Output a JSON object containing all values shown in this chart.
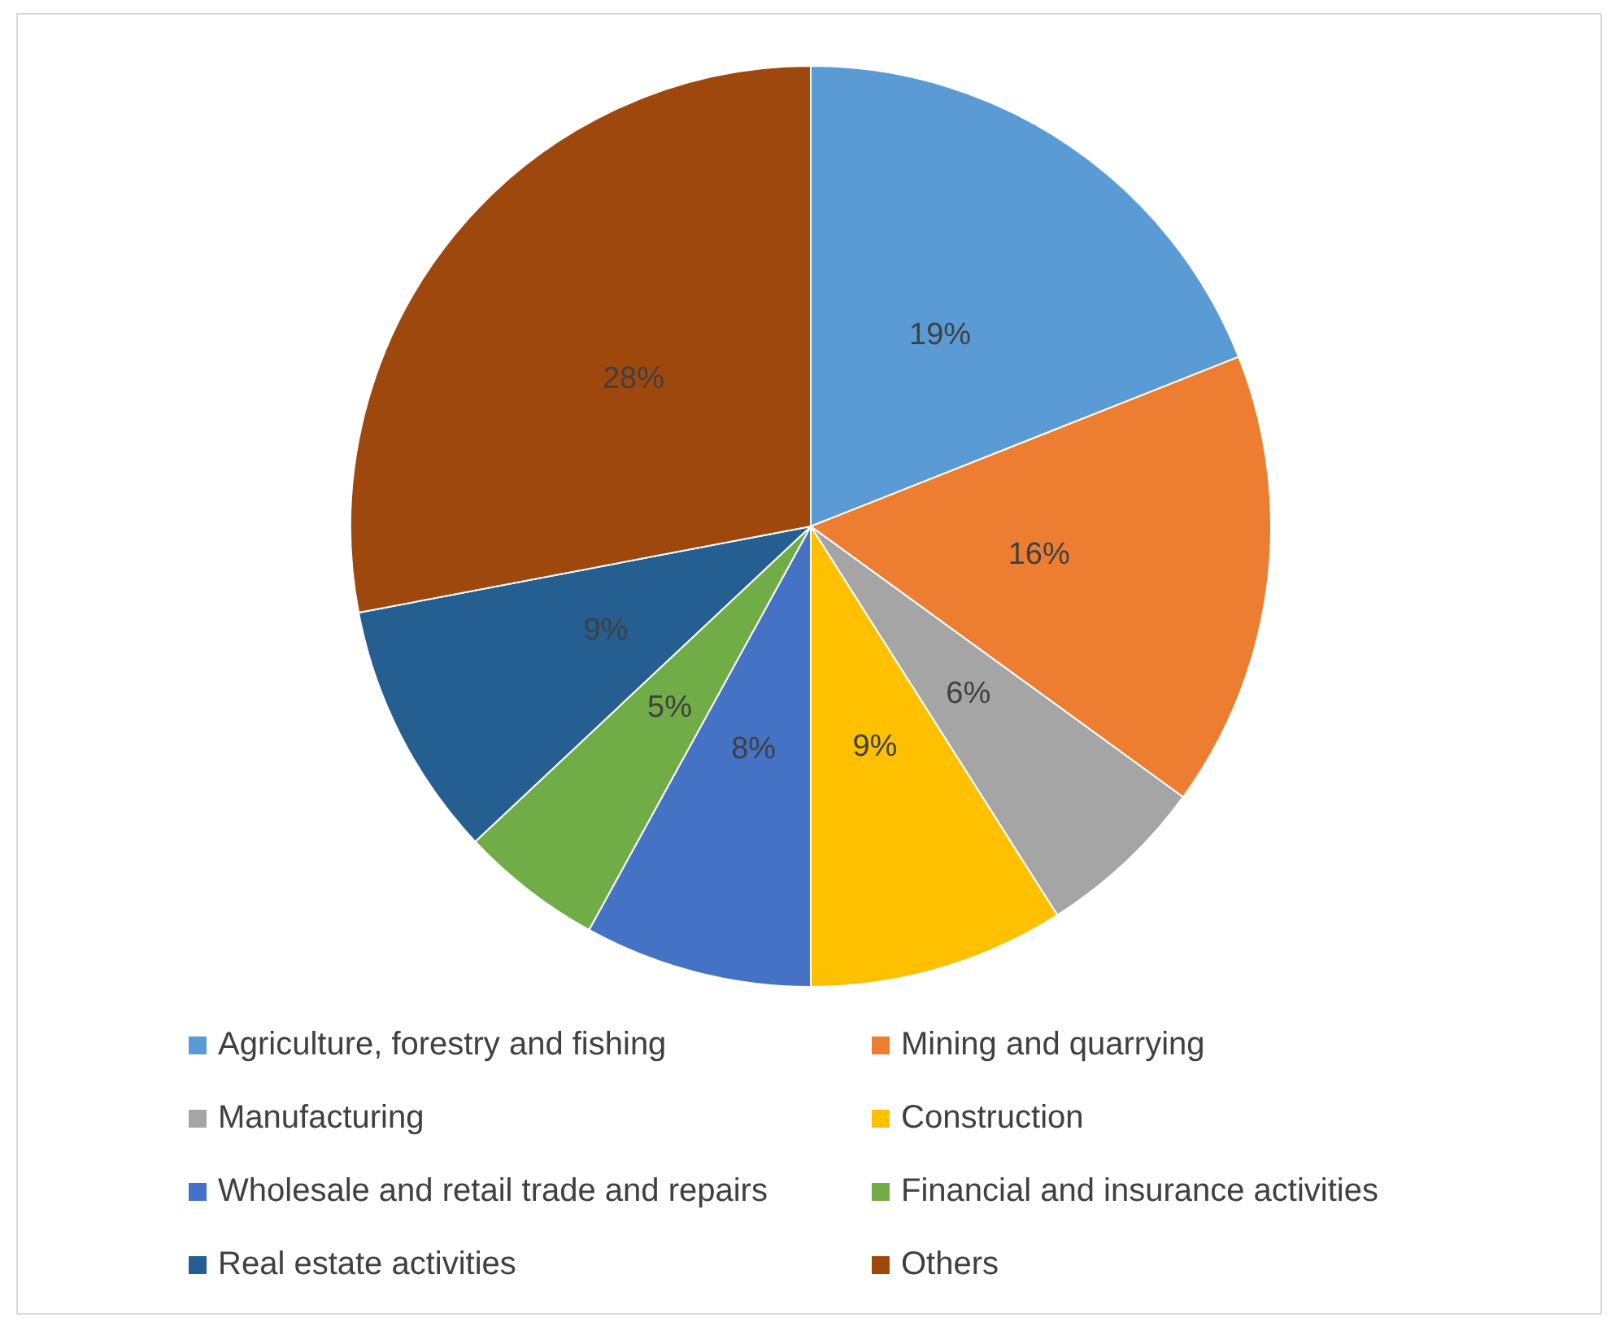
{
  "chart_data": {
    "type": "pie",
    "categories": [
      "Agriculture, forestry and fishing",
      "Mining and quarrying",
      "Manufacturing",
      "Construction",
      "Wholesale and retail trade and repairs",
      "Financial and insurance activities",
      "Real estate activities",
      "Others"
    ],
    "values": [
      19,
      16,
      6,
      9,
      8,
      5,
      9,
      28
    ],
    "colors": [
      "#5b9bd5",
      "#ed7d31",
      "#a5a5a5",
      "#ffc000",
      "#4472c4",
      "#70ad47",
      "#255e91",
      "#9e480e"
    ],
    "value_labels": [
      "19%",
      "16%",
      "6%",
      "9%",
      "8%",
      "5%",
      "9%",
      "28%"
    ],
    "legend": "bottom"
  }
}
